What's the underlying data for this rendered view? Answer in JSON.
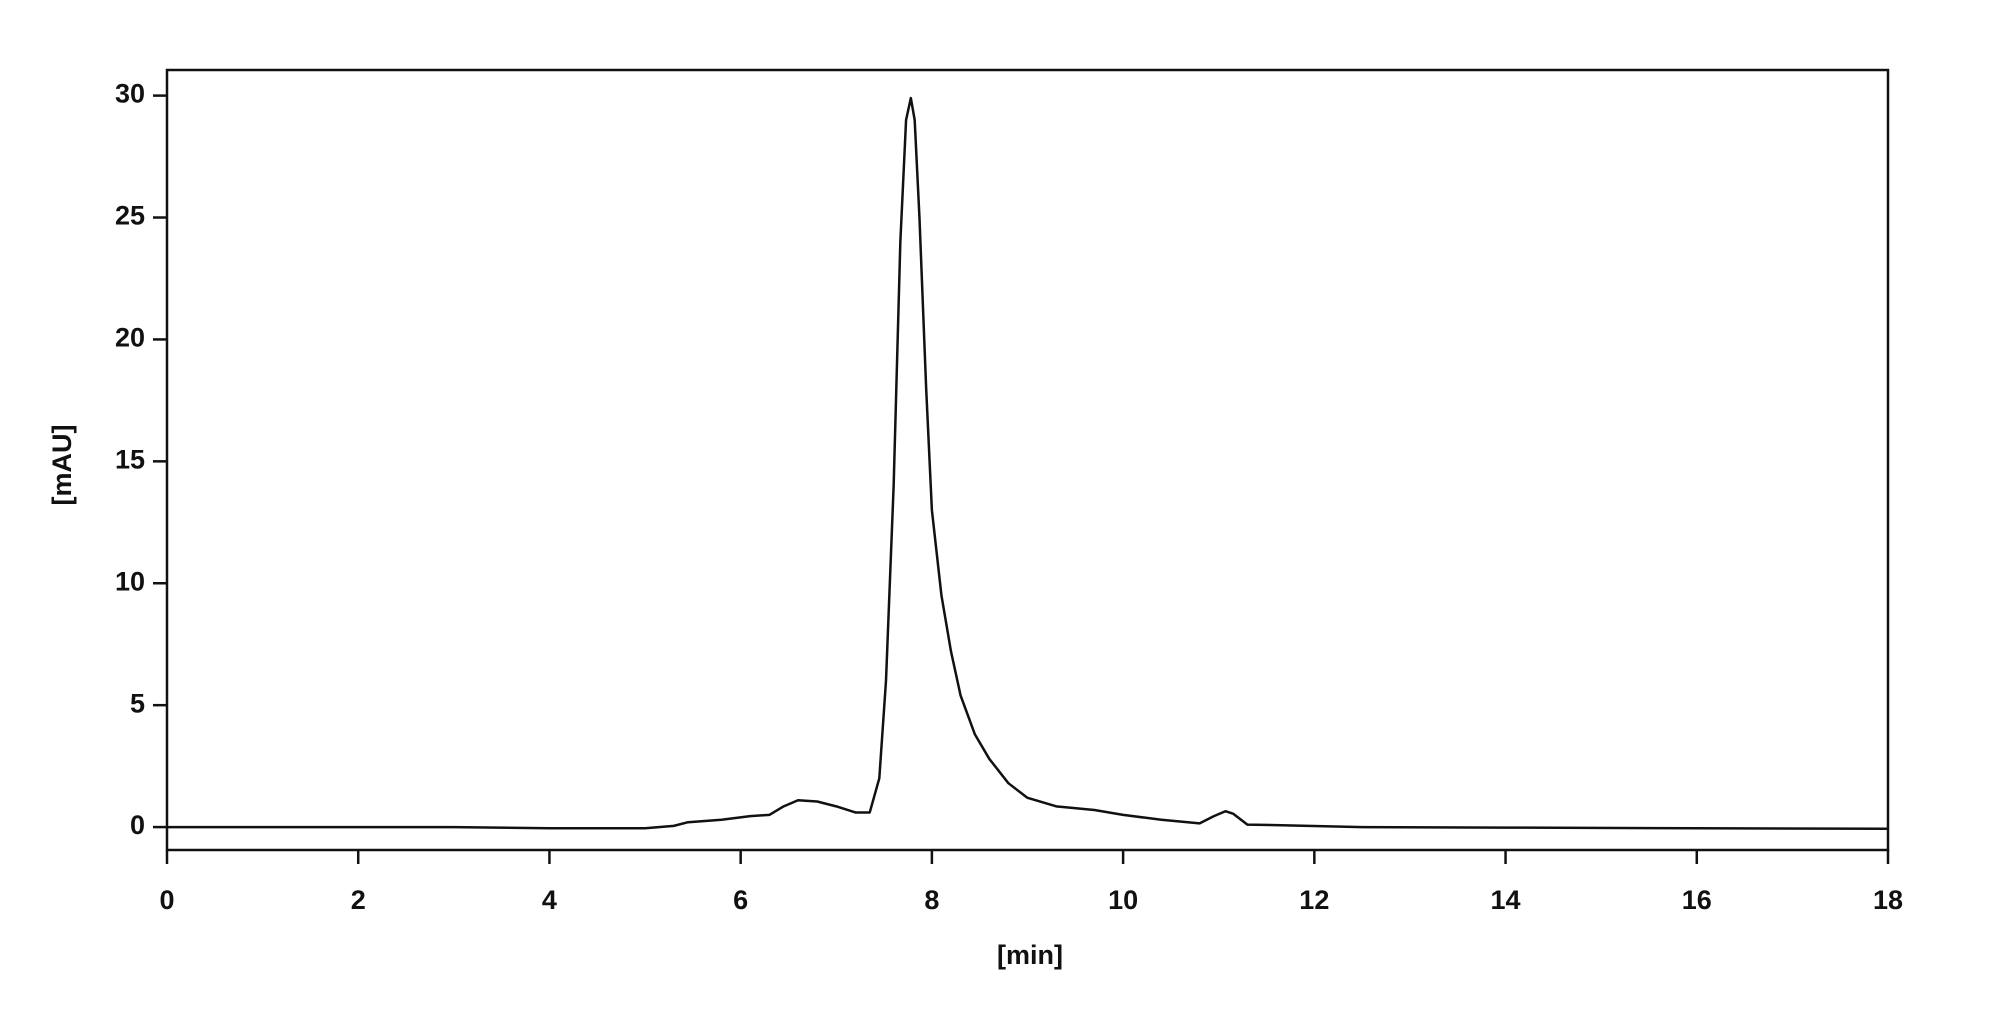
{
  "chart_data": {
    "type": "line",
    "xlabel": "[min]",
    "ylabel": "[mAU]",
    "x": [
      0,
      3,
      4,
      5,
      5.3,
      5.45,
      5.8,
      6.1,
      6.3,
      6.45,
      6.6,
      6.8,
      7.0,
      7.2,
      7.35,
      7.45,
      7.52,
      7.6,
      7.67,
      7.73,
      7.78,
      7.82,
      7.87,
      7.94,
      8.0,
      8.1,
      8.2,
      8.3,
      8.45,
      8.6,
      8.8,
      9.0,
      9.3,
      9.7,
      10.0,
      10.4,
      10.8,
      10.95,
      11.07,
      11.15,
      11.3,
      11.6,
      12.5,
      14,
      16,
      18
    ],
    "series": [
      {
        "color": "#111111",
        "values": [
          0,
          0,
          -0.05,
          -0.05,
          0.05,
          0.2,
          0.3,
          0.45,
          0.5,
          0.85,
          1.1,
          1.05,
          0.85,
          0.6,
          0.6,
          2,
          6,
          14,
          24,
          29,
          29.9,
          29,
          25,
          18,
          13,
          9.5,
          7.2,
          5.4,
          3.8,
          2.8,
          1.8,
          1.2,
          0.85,
          0.7,
          0.5,
          0.3,
          0.15,
          0.45,
          0.65,
          0.55,
          0.1,
          0.08,
          0,
          -0.02,
          -0.05,
          -0.07
        ]
      }
    ],
    "xlim": [
      0,
      18
    ],
    "xticks": [
      0,
      2,
      4,
      6,
      8,
      10,
      12,
      14,
      16,
      18
    ],
    "ylim": [
      -0.94,
      31.05
    ],
    "yticks": [
      0,
      5,
      10,
      15,
      20,
      25,
      30
    ]
  }
}
